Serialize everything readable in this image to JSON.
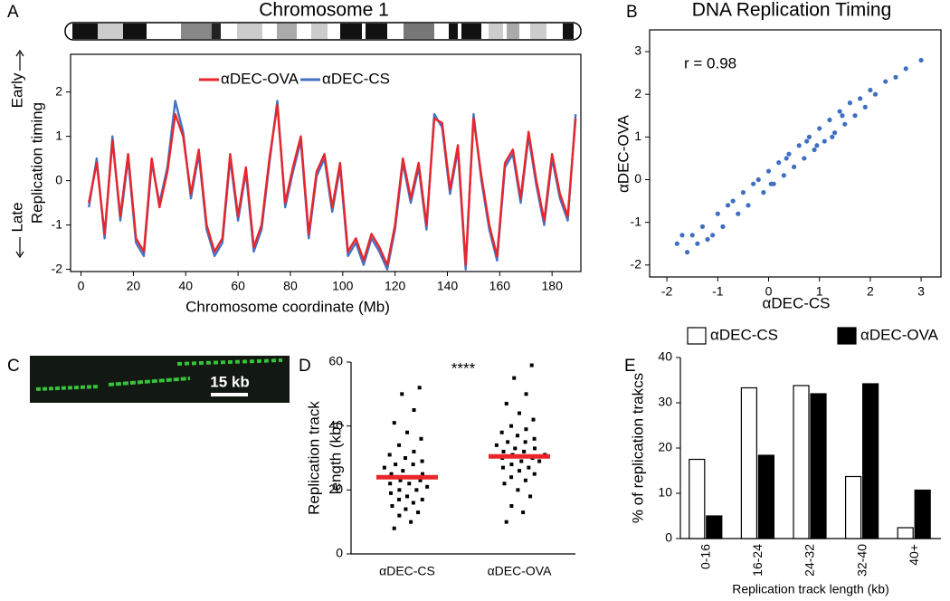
{
  "image_panel": {
    "panel": "C",
    "scale_label": "15 kb"
  },
  "chart_data": [
    {
      "type": "line",
      "panel": "A",
      "title": "Chromosome 1",
      "xlabel": "Chromosome coordinate (Mb)",
      "ylabel": "Replication timing",
      "annotations": [
        "Early",
        "Late"
      ],
      "legend": "top",
      "frame": true,
      "x": [
        3,
        6,
        9,
        12,
        15,
        18,
        21,
        24,
        27,
        30,
        33,
        36,
        39,
        42,
        45,
        48,
        51,
        54,
        57,
        60,
        63,
        66,
        69,
        72,
        75,
        78,
        81,
        84,
        87,
        90,
        93,
        96,
        99,
        102,
        105,
        108,
        111,
        114,
        117,
        120,
        123,
        126,
        129,
        132,
        135,
        138,
        141,
        144,
        147,
        150,
        153,
        156,
        159,
        162,
        165,
        168,
        171,
        174,
        177,
        180,
        183,
        186,
        189
      ],
      "series": [
        {
          "name": "αDEC-OVA",
          "color": "#e8262b",
          "values": [
            -0.5,
            0.4,
            -1.2,
            0.9,
            -0.8,
            0.6,
            -1.3,
            -1.6,
            0.5,
            -0.6,
            0.2,
            1.5,
            1.0,
            -0.3,
            0.7,
            -1.0,
            -1.6,
            -1.3,
            0.6,
            -0.8,
            0.3,
            -1.5,
            -1.0,
            0.5,
            1.7,
            -0.5,
            0.3,
            1.0,
            -1.2,
            0.2,
            0.6,
            -0.6,
            0.4,
            -1.6,
            -1.3,
            -1.8,
            -1.2,
            -1.5,
            -1.9,
            -1.0,
            0.5,
            -0.4,
            0.4,
            -1.0,
            1.4,
            1.3,
            -0.2,
            0.8,
            -1.9,
            1.4,
            0.1,
            -1.0,
            -1.7,
            0.4,
            0.7,
            -0.4,
            1.1,
            0.0,
            -0.9,
            0.6,
            -0.3,
            -0.8,
            1.4
          ]
        },
        {
          "name": "αDEC-CS",
          "color": "#4472c4",
          "values": [
            -0.6,
            0.5,
            -1.3,
            1.0,
            -0.9,
            0.5,
            -1.4,
            -1.7,
            0.4,
            -0.5,
            0.3,
            1.8,
            1.1,
            -0.4,
            0.6,
            -1.1,
            -1.7,
            -1.4,
            0.5,
            -0.9,
            0.2,
            -1.6,
            -1.1,
            0.4,
            1.8,
            -0.6,
            0.2,
            0.9,
            -1.3,
            0.1,
            0.5,
            -0.7,
            0.3,
            -1.7,
            -1.4,
            -1.9,
            -1.3,
            -1.6,
            -2.0,
            -1.1,
            0.4,
            -0.5,
            0.3,
            -1.1,
            1.5,
            1.2,
            -0.3,
            0.7,
            -2.0,
            1.5,
            0.0,
            -1.1,
            -1.8,
            0.3,
            0.6,
            -0.5,
            1.0,
            -0.1,
            -1.0,
            0.5,
            -0.4,
            -0.9,
            1.5
          ]
        }
      ],
      "xlim": [
        -4,
        191
      ],
      "xticks": [
        0,
        20,
        40,
        60,
        80,
        100,
        120,
        140,
        160,
        180
      ],
      "ylim": [
        -2.05,
        2.85
      ],
      "yticks": [
        -2,
        -1,
        0,
        1,
        2
      ]
    },
    {
      "type": "scatter",
      "panel": "B",
      "title": "DNA Replication Timing",
      "xlabel": "αDEC-CS",
      "ylabel": "αDEC-OVA",
      "annotations": [
        "r = 0.98"
      ],
      "frame": true,
      "color": "#3f6fc0",
      "x": [
        -1.8,
        -1.6,
        -1.5,
        -1.3,
        -1.2,
        -1.0,
        -0.9,
        -0.8,
        -0.6,
        -0.5,
        -0.4,
        -0.2,
        -0.1,
        0,
        0.1,
        0.2,
        0.3,
        0.4,
        0.5,
        0.6,
        0.7,
        0.8,
        0.9,
        1.0,
        1.1,
        1.2,
        1.3,
        1.4,
        1.5,
        1.6,
        1.7,
        1.8,
        1.9,
        2.0,
        2.1,
        2.3,
        2.5,
        2.7,
        3.0,
        -1.7,
        -1.1,
        -0.3,
        0.35,
        0.95,
        1.45,
        -1.4,
        -0.7,
        0.05,
        0.75,
        1.25
      ],
      "values": [
        -1.5,
        -1.7,
        -1.3,
        -1.1,
        -1.4,
        -0.8,
        -1.1,
        -0.6,
        -0.8,
        -0.3,
        -0.6,
        0.0,
        -0.3,
        0.2,
        -0.1,
        0.4,
        0.1,
        0.6,
        0.3,
        0.8,
        0.5,
        1.0,
        0.7,
        1.2,
        0.9,
        1.4,
        1.1,
        1.6,
        1.3,
        1.8,
        1.5,
        1.9,
        1.7,
        2.1,
        2.0,
        2.3,
        2.4,
        2.6,
        2.8,
        -1.3,
        -1.3,
        -0.1,
        0.5,
        0.8,
        1.5,
        -1.5,
        -0.5,
        -0.1,
        0.9,
        1.0
      ],
      "xlim": [
        -2.34,
        3.39
      ],
      "xticks": [
        -2,
        -1,
        0,
        1,
        2,
        3
      ],
      "ylim": [
        -2.28,
        3.51
      ],
      "yticks": [
        -2,
        -1,
        0,
        1,
        2,
        3
      ]
    },
    {
      "type": "strip",
      "panel": "D",
      "ylabel": [
        "Replication track",
        "length (kb)"
      ],
      "annotations": [
        "****"
      ],
      "categories": [
        "αDEC-CS",
        "αDEC-OVA"
      ],
      "color": "#000000",
      "mean_color": "#e8262b",
      "points": [
        [
          8,
          10,
          12,
          13,
          14,
          15,
          16,
          17,
          17,
          18,
          19,
          20,
          20,
          21,
          22,
          22,
          23,
          23,
          24,
          24,
          25,
          25,
          26,
          27,
          28,
          28,
          29,
          30,
          31,
          32,
          34,
          36,
          38,
          41,
          45,
          50,
          52
        ],
        [
          10,
          13,
          15,
          18,
          20,
          22,
          23,
          24,
          25,
          26,
          27,
          27,
          28,
          29,
          29,
          30,
          30,
          31,
          31,
          32,
          32,
          33,
          33,
          34,
          35,
          35,
          36,
          37,
          38,
          39,
          40,
          42,
          44,
          47,
          50,
          55,
          59
        ]
      ],
      "means": [
        24,
        30.5
      ],
      "ylim": [
        0,
        60
      ],
      "yticks": [
        0,
        20,
        40,
        60
      ]
    },
    {
      "type": "bar",
      "panel": "E",
      "xlabel": "Replication track length (kb)",
      "ylabel": "% of replication trakcs",
      "legend": "top",
      "categories": [
        "0-16",
        "16-24",
        "24-32",
        "32-40",
        "40+"
      ],
      "series": [
        {
          "name": "αDEC-CS",
          "color": "#ffffff",
          "values": [
            17.5,
            33.3,
            33.8,
            13.7,
            2.4
          ]
        },
        {
          "name": "αDEC-OVA",
          "color": "#000000",
          "values": [
            5,
            18.4,
            32,
            34.2,
            10.7
          ]
        }
      ],
      "ylim": [
        0,
        40
      ],
      "yticks": [
        0,
        10,
        20,
        30,
        40
      ]
    }
  ]
}
